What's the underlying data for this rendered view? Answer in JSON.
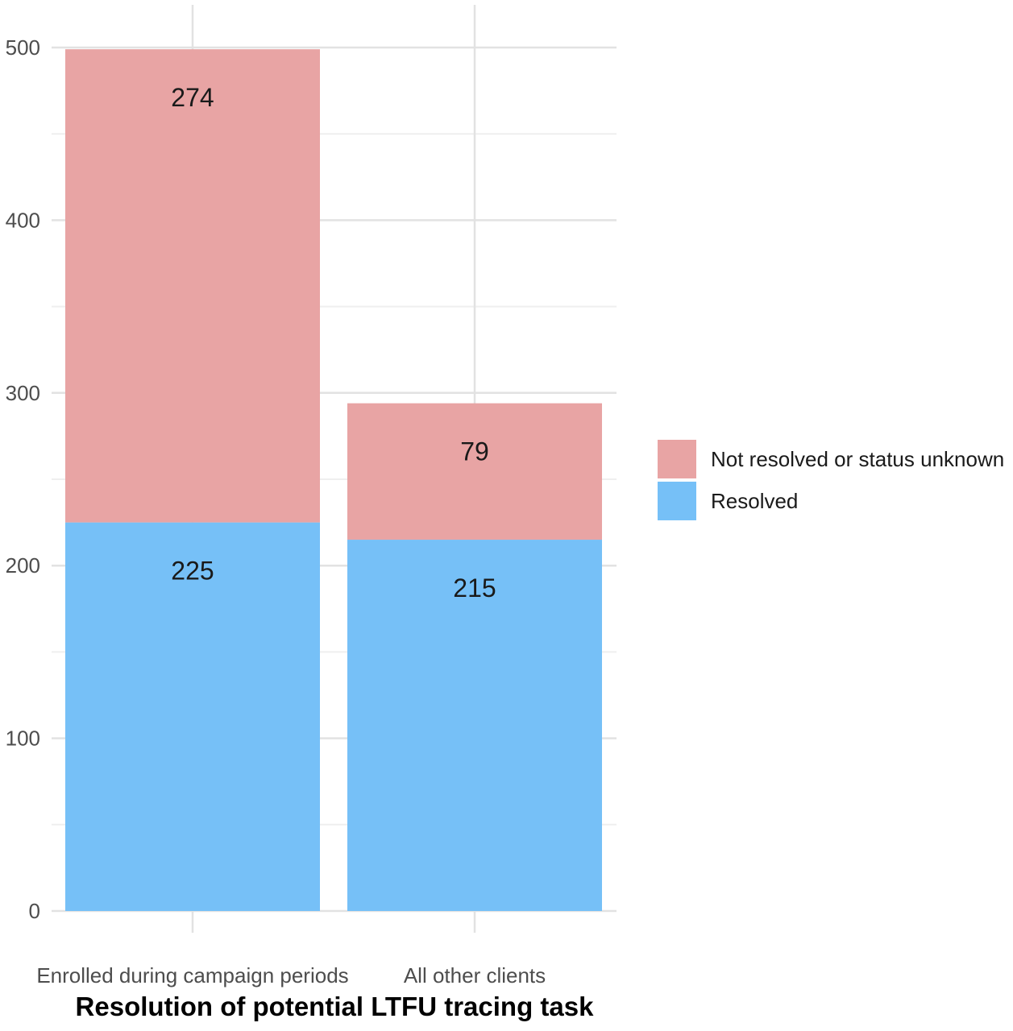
{
  "chart_data": {
    "type": "bar",
    "stacked": true,
    "title": "",
    "xlabel": "Resolution of potential LTFU tracing task",
    "ylabel": "",
    "categories": [
      "Enrolled during campaign periods",
      "All other clients"
    ],
    "series": [
      {
        "name": "Resolved",
        "values": [
          225,
          215
        ],
        "color": "#76c0f7"
      },
      {
        "name": "Not resolved or status unknown",
        "values": [
          274,
          79
        ],
        "color": "#e8a4a4"
      }
    ],
    "data_labels": true,
    "ylim": [
      0,
      500
    ],
    "yticks": [
      0,
      100,
      200,
      300,
      400,
      500
    ],
    "grid": true,
    "legend": {
      "position": "right",
      "entries": [
        "Not resolved or status unknown",
        "Resolved"
      ]
    }
  }
}
